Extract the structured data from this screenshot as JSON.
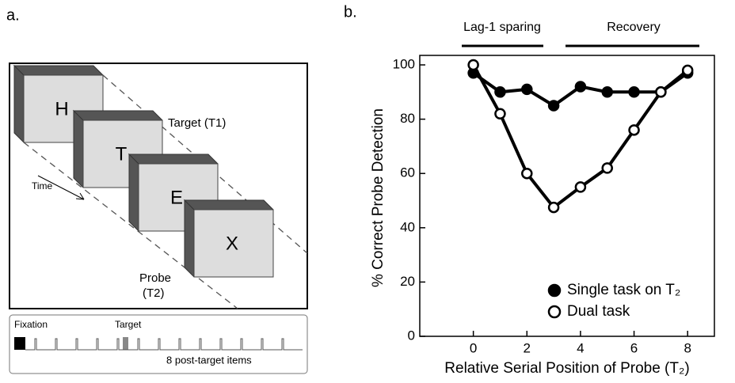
{
  "panel_a": {
    "label": "a.",
    "letters": [
      "H",
      "T",
      "E",
      "X"
    ],
    "target_label": "Target (T1)",
    "time_label": "Time",
    "probe_label": "Probe",
    "probe_sub": "(T2)",
    "timeline": {
      "fixation": "Fixation",
      "target": "Target",
      "post": "8 post-target items"
    }
  },
  "chart_data": {
    "type": "line",
    "panel_label": "b.",
    "x_label": "Relative Serial Position of Probe (T₂)",
    "y_label": "% Correct Probe Detection",
    "annotations": [
      "Lag-1 sparing",
      "Recovery"
    ],
    "x": [
      0,
      1,
      2,
      3,
      4,
      5,
      6,
      7,
      8
    ],
    "series": [
      {
        "name": "Single task on T₂",
        "color": "#000000",
        "marker_fill": "#000000",
        "values": [
          97,
          90,
          91,
          85,
          92,
          90,
          90,
          90,
          97
        ]
      },
      {
        "name": "Dual task",
        "color": "#000000",
        "marker_fill": "#ffffff",
        "values": [
          100,
          82,
          60,
          47.5,
          55,
          62,
          76,
          90,
          98
        ]
      }
    ],
    "xlim": [
      -2,
      9
    ],
    "ylim": [
      0,
      103.5
    ],
    "xticks": [
      0,
      2,
      4,
      6,
      8
    ],
    "yticks": [
      0,
      20,
      40,
      60,
      80,
      100
    ],
    "legend": "lower right"
  }
}
